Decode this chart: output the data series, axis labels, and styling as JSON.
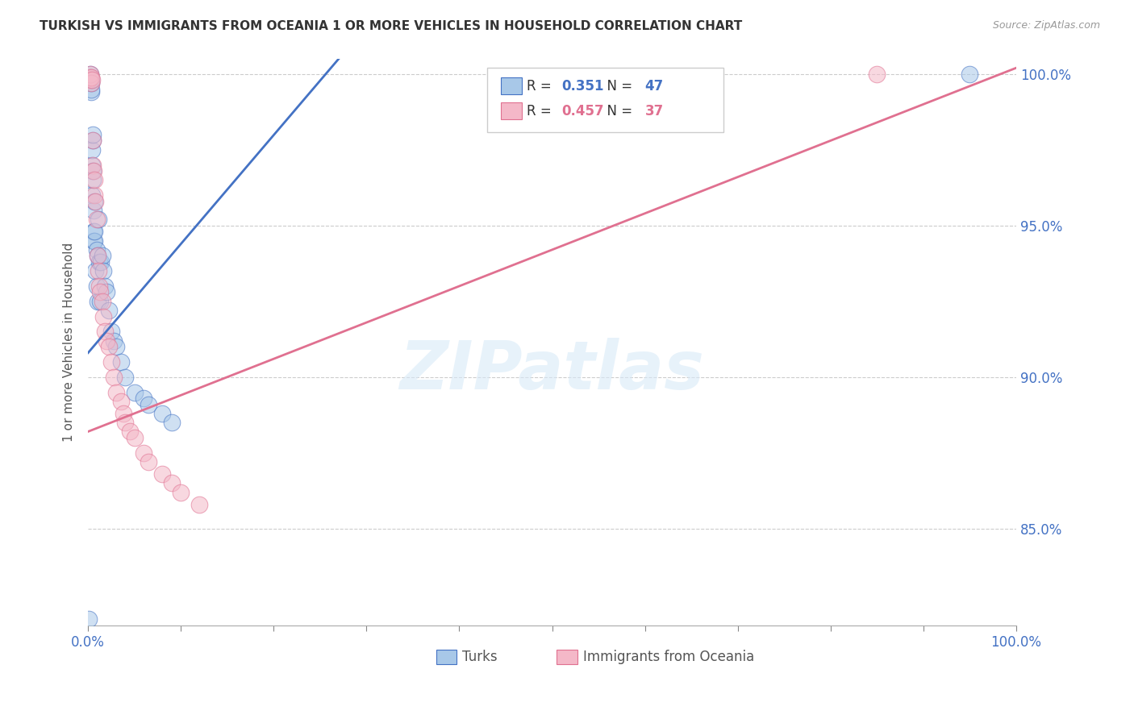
{
  "title": "TURKISH VS IMMIGRANTS FROM OCEANIA 1 OR MORE VEHICLES IN HOUSEHOLD CORRELATION CHART",
  "source": "Source: ZipAtlas.com",
  "ylabel": "1 or more Vehicles in Household",
  "legend_label1": "Turks",
  "legend_label2": "Immigrants from Oceania",
  "r1": 0.351,
  "n1": 47,
  "r2": 0.457,
  "n2": 37,
  "color_blue_fill": "#a8c8e8",
  "color_pink_fill": "#f4b8c8",
  "color_blue_edge": "#4472c4",
  "color_pink_edge": "#e07090",
  "color_blue_line": "#4472c4",
  "color_pink_line": "#e07090",
  "color_axis": "#4472c4",
  "background": "#ffffff",
  "xlim": [
    0.0,
    1.0
  ],
  "ylim": [
    0.818,
    1.005
  ],
  "y_ticks": [
    0.85,
    0.9,
    0.95,
    1.0
  ],
  "y_tick_labels": [
    "85.0%",
    "90.0%",
    "95.0%",
    "100.0%"
  ],
  "x_ticks": [
    0.0,
    0.1,
    0.2,
    0.3,
    0.4,
    0.5,
    0.6,
    0.7,
    0.8,
    0.9,
    1.0
  ],
  "turks_x": [
    0.001,
    0.001,
    0.002,
    0.002,
    0.002,
    0.003,
    0.003,
    0.003,
    0.003,
    0.004,
    0.004,
    0.004,
    0.005,
    0.005,
    0.005,
    0.005,
    0.006,
    0.006,
    0.006,
    0.007,
    0.007,
    0.007,
    0.008,
    0.009,
    0.009,
    0.01,
    0.01,
    0.011,
    0.012,
    0.013,
    0.014,
    0.015,
    0.016,
    0.018,
    0.02,
    0.022,
    0.025,
    0.028,
    0.03,
    0.035,
    0.04,
    0.05,
    0.06,
    0.065,
    0.08,
    0.09,
    0.95
  ],
  "turks_y": [
    0.82,
    0.998,
    0.999,
    0.999,
    1.0,
    0.994,
    0.995,
    0.997,
    0.998,
    0.96,
    0.97,
    0.975,
    0.965,
    0.968,
    0.978,
    0.98,
    0.945,
    0.948,
    0.955,
    0.945,
    0.948,
    0.958,
    0.935,
    0.93,
    0.942,
    0.925,
    0.94,
    0.952,
    0.938,
    0.925,
    0.938,
    0.94,
    0.935,
    0.93,
    0.928,
    0.922,
    0.915,
    0.912,
    0.91,
    0.905,
    0.9,
    0.895,
    0.893,
    0.891,
    0.888,
    0.885,
    1.0
  ],
  "oceania_x": [
    0.001,
    0.002,
    0.002,
    0.003,
    0.003,
    0.004,
    0.005,
    0.005,
    0.006,
    0.007,
    0.007,
    0.008,
    0.009,
    0.01,
    0.011,
    0.012,
    0.013,
    0.015,
    0.016,
    0.018,
    0.02,
    0.022,
    0.025,
    0.028,
    0.03,
    0.035,
    0.038,
    0.04,
    0.045,
    0.05,
    0.06,
    0.065,
    0.08,
    0.09,
    0.1,
    0.12,
    0.85
  ],
  "oceania_y": [
    0.998,
    0.999,
    1.0,
    0.997,
    0.999,
    0.998,
    0.97,
    0.978,
    0.968,
    0.96,
    0.965,
    0.958,
    0.952,
    0.94,
    0.935,
    0.93,
    0.928,
    0.925,
    0.92,
    0.915,
    0.912,
    0.91,
    0.905,
    0.9,
    0.895,
    0.892,
    0.888,
    0.885,
    0.882,
    0.88,
    0.875,
    0.872,
    0.868,
    0.865,
    0.862,
    0.858,
    1.0
  ],
  "blue_line_x": [
    0.0,
    0.27
  ],
  "blue_line_y": [
    0.908,
    1.005
  ],
  "pink_line_x": [
    0.0,
    1.0
  ],
  "pink_line_y": [
    0.882,
    1.002
  ]
}
